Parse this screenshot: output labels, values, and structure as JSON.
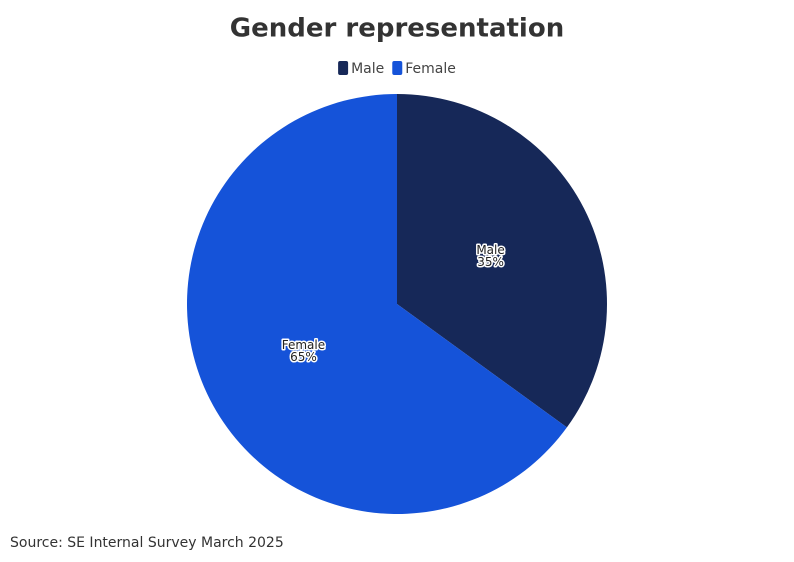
{
  "chart_data": {
    "type": "pie",
    "title": "Gender representation",
    "categories": [
      "Male",
      "Female"
    ],
    "values": [
      35,
      65
    ],
    "value_labels": [
      "35%",
      "65%"
    ],
    "colors": [
      "#162858",
      "#1553d9"
    ],
    "legend": "top",
    "source": "Source: SE Internal Survey March 2025"
  }
}
